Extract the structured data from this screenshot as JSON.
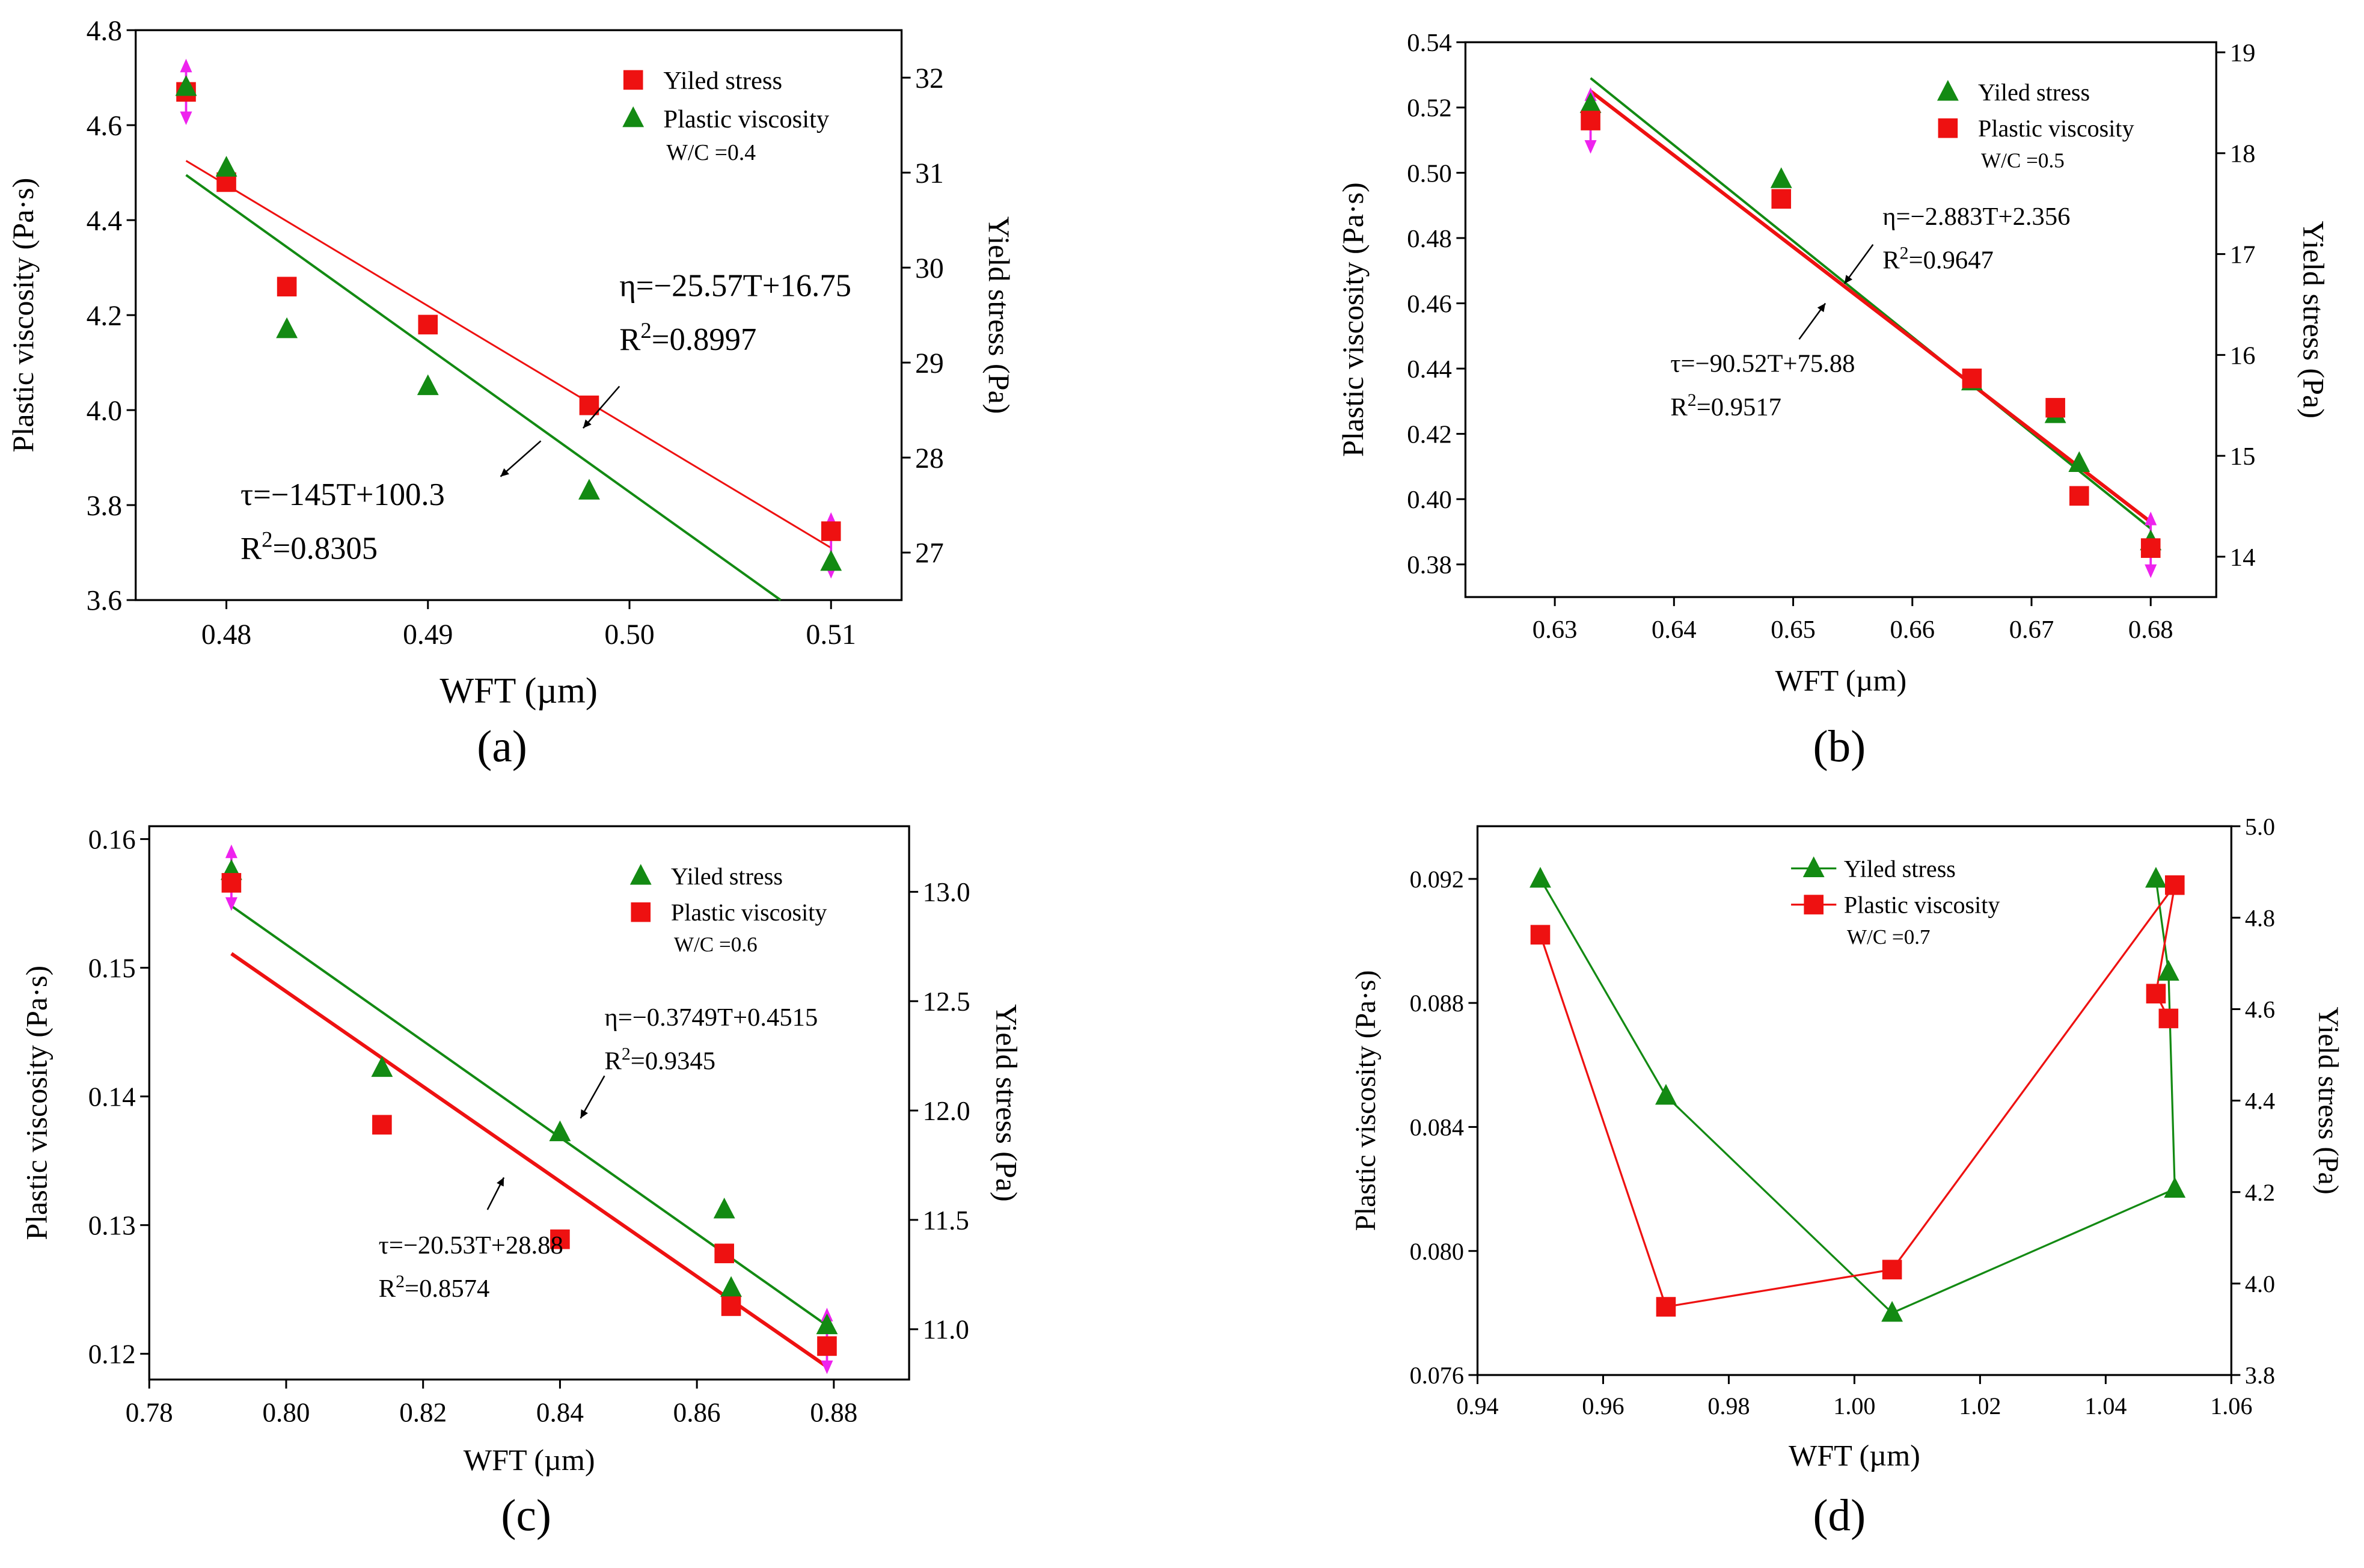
{
  "figure": {
    "panel_labels": [
      "(a)",
      "(b)",
      "(c)",
      "(d)"
    ]
  },
  "colors": {
    "red": "#ee1111",
    "green": "#138a13",
    "magenta": "#ee22ee",
    "axis": "#000000"
  },
  "chart_data": [
    {
      "id": "a",
      "type": "scatter",
      "panel_label": "(a)",
      "xlabel": "WFT (µm)",
      "ylabel": "Plastic viscosity (Pa·s)",
      "y2label": "Yield stress (Pa)",
      "xlim": [
        0.4755,
        0.5135
      ],
      "xticks": [
        0.48,
        0.49,
        0.5,
        0.51
      ],
      "xtick_labels": [
        "0.48",
        "0.49",
        "0.50",
        "0.51"
      ],
      "ylim": [
        3.6,
        4.8
      ],
      "yticks": [
        3.6,
        3.8,
        4.0,
        4.2,
        4.4,
        4.6,
        4.8
      ],
      "ytick_labels": [
        "3.6",
        "3.8",
        "4.0",
        "4.2",
        "4.4",
        "4.6",
        "4.8"
      ],
      "y2lim": [
        26.5,
        32.5
      ],
      "y2ticks": [
        27,
        28,
        29,
        30,
        31,
        32
      ],
      "y2tick_labels": [
        "27",
        "28",
        "29",
        "30",
        "31",
        "32"
      ],
      "legend": {
        "position": "top-right",
        "entries": [
          {
            "label": "Yiled stress",
            "marker": "square",
            "color": "red"
          },
          {
            "label": "Plastic viscosity",
            "marker": "triangle",
            "color": "green"
          }
        ],
        "note": "W/C =0.4"
      },
      "series": [
        {
          "name": "Red squares",
          "marker": "square",
          "color": "red",
          "points": [
            [
              0.478,
              4.67
            ],
            [
              0.48,
              4.48
            ],
            [
              0.483,
              4.26
            ],
            [
              0.49,
              4.18
            ],
            [
              0.498,
              4.01
            ],
            [
              0.51,
              3.745
            ]
          ]
        },
        {
          "name": "Green triangles",
          "marker": "triangle",
          "color": "green",
          "points": [
            [
              0.478,
              4.68
            ],
            [
              0.48,
              4.51
            ],
            [
              0.483,
              4.17
            ],
            [
              0.49,
              4.05
            ],
            [
              0.498,
              3.83
            ],
            [
              0.51,
              3.68
            ]
          ]
        }
      ],
      "fits": [
        {
          "color": "red",
          "width": 1.2,
          "from": [
            0.478,
            4.525
          ],
          "to": [
            0.51,
            3.71
          ]
        },
        {
          "color": "green",
          "width": 1.6,
          "from": [
            0.478,
            4.495
          ],
          "to": [
            0.5075,
            3.6
          ]
        }
      ],
      "error_markers": [
        [
          0.478,
          4.67
        ],
        [
          0.51,
          3.715
        ]
      ],
      "annotations": [
        {
          "lines": [
            "η=−25.57T+16.75",
            "R2=0.8997"
          ],
          "pos": [
            0.4995,
            4.24
          ],
          "arrow_from": [
            0.4995,
            4.05
          ],
          "arrow_to": [
            0.4977,
            3.962
          ]
        },
        {
          "lines": [
            "τ=−145T+100.3",
            "R2=0.8305"
          ],
          "pos": [
            0.4807,
            3.8
          ],
          "arrow_from": [
            0.4956,
            3.935
          ],
          "arrow_to": [
            0.4936,
            3.86
          ]
        }
      ]
    },
    {
      "id": "b",
      "type": "scatter",
      "panel_label": "(b)",
      "xlabel": "WFT (µm)",
      "ylabel": "Plastic viscosity (Pa·s)",
      "y2label": "Yield stress (Pa)",
      "xlim": [
        0.6225,
        0.6855
      ],
      "xticks": [
        0.63,
        0.64,
        0.65,
        0.66,
        0.67,
        0.68
      ],
      "xtick_labels": [
        "0.63",
        "0.64",
        "0.65",
        "0.66",
        "0.67",
        "0.68"
      ],
      "ylim": [
        0.37,
        0.54
      ],
      "yticks": [
        0.38,
        0.4,
        0.42,
        0.44,
        0.46,
        0.48,
        0.5,
        0.52,
        0.54
      ],
      "ytick_labels": [
        "0.38",
        "0.40",
        "0.42",
        "0.44",
        "0.46",
        "0.48",
        "0.50",
        "0.52",
        "0.54"
      ],
      "y2lim": [
        13.6,
        19.1
      ],
      "y2ticks": [
        14,
        15,
        16,
        17,
        18,
        19
      ],
      "y2tick_labels": [
        "14",
        "15",
        "16",
        "17",
        "18",
        "19"
      ],
      "legend": {
        "position": "top-right",
        "entries": [
          {
            "label": "Yiled stress",
            "marker": "triangle",
            "color": "green"
          },
          {
            "label": "Plastic viscosity",
            "marker": "square",
            "color": "red"
          }
        ],
        "note": "W/C =0.5"
      },
      "series": [
        {
          "name": "Green triangles",
          "marker": "triangle",
          "color": "green",
          "points": [
            [
              0.633,
              0.521
            ],
            [
              0.649,
              0.498
            ],
            [
              0.665,
              0.436
            ],
            [
              0.672,
              0.426
            ],
            [
              0.674,
              0.411
            ],
            [
              0.68,
              0.387
            ]
          ]
        },
        {
          "name": "Red squares",
          "marker": "square",
          "color": "red",
          "points": [
            [
              0.633,
              0.516
            ],
            [
              0.649,
              0.492
            ],
            [
              0.665,
              0.437
            ],
            [
              0.672,
              0.428
            ],
            [
              0.674,
              0.401
            ],
            [
              0.68,
              0.385
            ]
          ]
        }
      ],
      "fits": [
        {
          "color": "green",
          "width": 1.6,
          "from": [
            0.633,
            0.529
          ],
          "to": [
            0.68,
            0.391
          ]
        },
        {
          "color": "red",
          "width": 2.4,
          "from": [
            0.633,
            0.525
          ],
          "to": [
            0.68,
            0.393
          ]
        }
      ],
      "error_markers": [
        [
          0.633,
          0.516
        ],
        [
          0.68,
          0.386
        ]
      ],
      "annotations": [
        {
          "lines": [
            "η=−2.883T+2.356",
            "R2=0.9647"
          ],
          "pos": [
            0.6575,
            0.484
          ],
          "arrow_from": [
            0.6567,
            0.478
          ],
          "arrow_to": [
            0.6543,
            0.466
          ]
        },
        {
          "lines": [
            "τ=−90.52T+75.88",
            "R2=0.9517"
          ],
          "pos": [
            0.6397,
            0.439
          ],
          "arrow_from": [
            0.6505,
            0.449
          ],
          "arrow_to": [
            0.6527,
            0.46
          ]
        }
      ]
    },
    {
      "id": "c",
      "type": "scatter",
      "panel_label": "(c)",
      "xlabel": "WFT (µm)",
      "ylabel": "Plastic viscosity (Pa·s)",
      "y2label": "Yield stress (Pa)",
      "xlim": [
        0.78,
        0.891
      ],
      "xticks": [
        0.78,
        0.8,
        0.82,
        0.84,
        0.86,
        0.88
      ],
      "xtick_labels": [
        "0.78",
        "0.80",
        "0.82",
        "0.84",
        "0.86",
        "0.88"
      ],
      "ylim": [
        0.118,
        0.161
      ],
      "yticks": [
        0.12,
        0.13,
        0.14,
        0.15,
        0.16
      ],
      "ytick_labels": [
        "0.12",
        "0.13",
        "0.14",
        "0.15",
        "0.16"
      ],
      "y2lim": [
        10.77,
        13.3
      ],
      "y2ticks": [
        11.0,
        11.5,
        12.0,
        12.5,
        13.0
      ],
      "y2tick_labels": [
        "11.0",
        "11.5",
        "12.0",
        "12.5",
        "13.0"
      ],
      "legend": {
        "position": "top-right",
        "entries": [
          {
            "label": "Yiled stress",
            "marker": "triangle",
            "color": "green"
          },
          {
            "label": "Plastic viscosity",
            "marker": "square",
            "color": "red"
          }
        ],
        "note": "W/C =0.6"
      },
      "series": [
        {
          "name": "Green triangles",
          "marker": "triangle",
          "color": "green",
          "points": [
            [
              0.792,
              0.1575
            ],
            [
              0.814,
              0.1422
            ],
            [
              0.84,
              0.1372
            ],
            [
              0.864,
              0.1312
            ],
            [
              0.865,
              0.1251
            ],
            [
              0.879,
              0.1222
            ]
          ]
        },
        {
          "name": "Red squares",
          "marker": "square",
          "color": "red",
          "points": [
            [
              0.792,
              0.1566
            ],
            [
              0.814,
              0.1378
            ],
            [
              0.84,
              0.1289
            ],
            [
              0.864,
              0.1278
            ],
            [
              0.865,
              0.1237
            ],
            [
              0.879,
              0.1206
            ]
          ]
        }
      ],
      "fits": [
        {
          "color": "green",
          "width": 1.6,
          "from": [
            0.792,
            0.1548
          ],
          "to": [
            0.879,
            0.1222
          ]
        },
        {
          "color": "red",
          "width": 2.4,
          "from": [
            0.792,
            0.1511
          ],
          "to": [
            0.879,
            0.119
          ]
        }
      ],
      "error_markers": [
        [
          0.792,
          0.157
        ],
        [
          0.879,
          0.121
        ]
      ],
      "annotations": [
        {
          "lines": [
            "η=−0.3749T+0.4515",
            "R2=0.9345"
          ],
          "pos": [
            0.8465,
            0.1455
          ],
          "arrow_from": [
            0.8465,
            0.1416
          ],
          "arrow_to": [
            0.843,
            0.1383
          ]
        },
        {
          "lines": [
            "τ=−20.53T+28.88",
            "R2=0.8574"
          ],
          "pos": [
            0.8135,
            0.1278
          ],
          "arrow_from": [
            0.8294,
            0.1312
          ],
          "arrow_to": [
            0.8318,
            0.1337
          ]
        }
      ]
    },
    {
      "id": "d",
      "type": "line",
      "panel_label": "(d)",
      "xlabel": "WFT (µm)",
      "ylabel": "Plastic viscosity (Pa·s)",
      "y2label": "Yield stress (Pa)",
      "xlim": [
        0.94,
        1.06
      ],
      "xticks": [
        0.94,
        0.96,
        0.98,
        1.0,
        1.02,
        1.04,
        1.06
      ],
      "xtick_labels": [
        "0.94",
        "0.96",
        "0.98",
        "1.00",
        "1.02",
        "1.04",
        "1.06"
      ],
      "ylim": [
        0.076,
        0.0937
      ],
      "yticks": [
        0.076,
        0.08,
        0.084,
        0.088,
        0.092
      ],
      "ytick_labels": [
        "0.076",
        "0.080",
        "0.084",
        "0.088",
        "0.092"
      ],
      "y2lim": [
        3.8,
        5.0
      ],
      "y2ticks": [
        3.8,
        4.0,
        4.2,
        4.4,
        4.6,
        4.8,
        5.0
      ],
      "y2tick_labels": [
        "3.8",
        "4.0",
        "4.2",
        "4.4",
        "4.6",
        "4.8",
        "5.0"
      ],
      "legend": {
        "position": "top-center",
        "entries": [
          {
            "label": "Yiled stress",
            "marker": "triangle",
            "color": "green"
          },
          {
            "label": "Plastic viscosity",
            "marker": "square",
            "color": "red"
          }
        ],
        "note": "W/C =0.7"
      },
      "series": [
        {
          "name": "Green triangles",
          "marker": "triangle",
          "color": "green",
          "connected": true,
          "points": [
            [
              0.95,
              0.092
            ],
            [
              0.97,
              0.085
            ],
            [
              1.006,
              0.078
            ],
            [
              1.051,
              0.082
            ],
            [
              1.05,
              0.089
            ],
            [
              1.048,
              0.092
            ]
          ]
        },
        {
          "name": "Red squares",
          "marker": "square",
          "color": "red",
          "connected": true,
          "points": [
            [
              0.95,
              0.0902
            ],
            [
              0.97,
              0.0782
            ],
            [
              1.006,
              0.0794
            ],
            [
              1.051,
              0.0918
            ],
            [
              1.048,
              0.0883
            ],
            [
              1.05,
              0.0875
            ]
          ]
        }
      ],
      "fits": [],
      "error_markers": [],
      "annotations": []
    }
  ]
}
